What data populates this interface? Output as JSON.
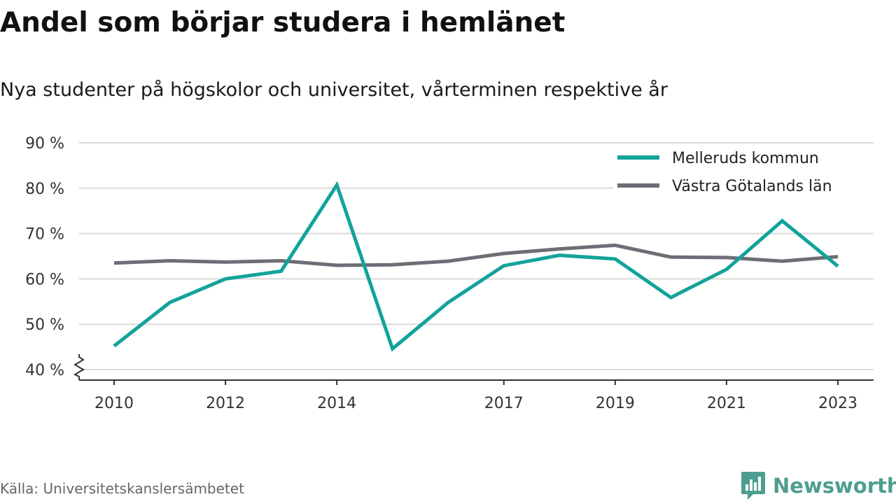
{
  "header": {
    "title": "Andel som börjar studera i hemlänet",
    "subtitle": "Nya studenter på högskolor och universitet, vårterminen respektive år"
  },
  "footer": {
    "source": "Källa: Universitetskanslersämbetet",
    "brand": "Newsworthy"
  },
  "colors": {
    "melleruds": "#12a39a",
    "vastra_gotaland": "#6e6d75",
    "grid": "#d9d9d9",
    "brand": "#4d9e8f"
  },
  "icons": {
    "brand_logo": "bar-chart-speech-bubble-icon",
    "axis_break": "zigzag-axis-break-icon"
  },
  "chart_data": {
    "type": "line",
    "title": "Andel som börjar studera i hemlänet",
    "subtitle": "Nya studenter på högskolor och universitet, vårterminen respektive år",
    "x": [
      2010,
      2011,
      2012,
      2013,
      2014,
      2015,
      2016,
      2017,
      2018,
      2019,
      2020,
      2021,
      2022,
      2023
    ],
    "x_tick_labels": [
      "2010",
      "2012",
      "2014",
      "2017",
      "2019",
      "2021",
      "2023"
    ],
    "x_tick_values": [
      2010,
      2012,
      2014,
      2017,
      2019,
      2021,
      2023
    ],
    "y_tick_labels": [
      "40 %",
      "50 %",
      "60 %",
      "70 %",
      "80 %",
      "90 %"
    ],
    "y_tick_values": [
      40,
      50,
      60,
      70,
      80,
      90
    ],
    "ylim": [
      40,
      90
    ],
    "y_axis_break": true,
    "grid": "horizontal",
    "legend_position": "top-right",
    "series": [
      {
        "name": "Melleruds kommun",
        "color": "#12a39a",
        "values": [
          45.2,
          54.8,
          60.0,
          61.7,
          80.7,
          44.6,
          54.8,
          62.9,
          65.2,
          64.4,
          55.9,
          62.1,
          72.8,
          62.8
        ]
      },
      {
        "name": "Västra Götalands län",
        "color": "#6e6d75",
        "values": [
          63.5,
          64.0,
          63.7,
          64.0,
          63.0,
          63.1,
          63.9,
          65.6,
          66.6,
          67.4,
          64.8,
          64.7,
          63.9,
          64.9
        ]
      }
    ],
    "xlabel": "",
    "ylabel": ""
  }
}
